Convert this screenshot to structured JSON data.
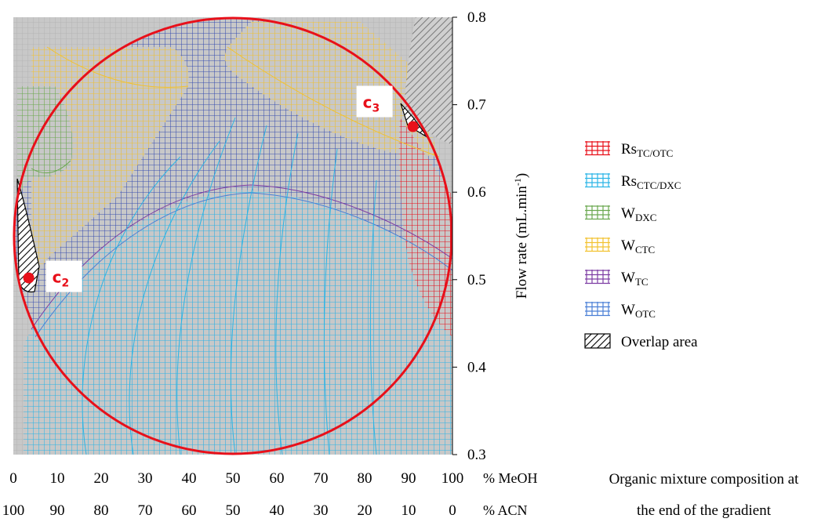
{
  "chart_data": {
    "type": "contour-overlay",
    "x_axis": {
      "unit_top": "% MeOH",
      "unit_bottom": "% ACN",
      "ticks_meoh": [
        "0",
        "10",
        "20",
        "30",
        "40",
        "50",
        "60",
        "70",
        "80",
        "90",
        "100"
      ],
      "ticks_acn": [
        "100",
        "90",
        "80",
        "70",
        "60",
        "50",
        "40",
        "30",
        "20",
        "10",
        "0"
      ],
      "xlim": [
        0,
        100
      ]
    },
    "y_axis": {
      "label": "Flow rate (mL.min",
      "label_sup": "-1",
      "label_end": ")",
      "ticks": [
        "0.3",
        "0.4",
        "0.5",
        "0.6",
        "0.7",
        "0.8"
      ],
      "ylim": [
        0.3,
        0.8
      ]
    },
    "design_space": {
      "shape": "circle",
      "center": [
        50,
        0.55
      ],
      "radius_x": 50,
      "radius_y": 0.25,
      "color": "#e8101a"
    },
    "points": [
      {
        "label": "C",
        "sub": "2",
        "x": 3.5,
        "y": 0.502
      },
      {
        "label": "C",
        "sub": "3",
        "x": 91,
        "y": 0.675
      }
    ],
    "legend": [
      {
        "name": "Rs",
        "sub": "TC/OTC",
        "color": "#e8101a",
        "pattern": "grid"
      },
      {
        "name": "Rs",
        "sub": "CTC/DXC",
        "color": "#2bb5e6",
        "pattern": "grid"
      },
      {
        "name": "W",
        "sub": "DXC",
        "color": "#6aa84f",
        "pattern": "grid"
      },
      {
        "name": "W",
        "sub": "CTC",
        "color": "#f2c230",
        "pattern": "grid"
      },
      {
        "name": "W",
        "sub": "TC",
        "color": "#7d3ca3",
        "pattern": "grid"
      },
      {
        "name": "W",
        "sub": "OTC",
        "color": "#4a7fd6",
        "pattern": "grid"
      },
      {
        "name": "Overlap area",
        "sub": "",
        "color": "#000000",
        "pattern": "hatch"
      }
    ],
    "grid": true
  },
  "caption": {
    "line1": "Organic mixture composition at",
    "line2": "the end of the gradient"
  }
}
